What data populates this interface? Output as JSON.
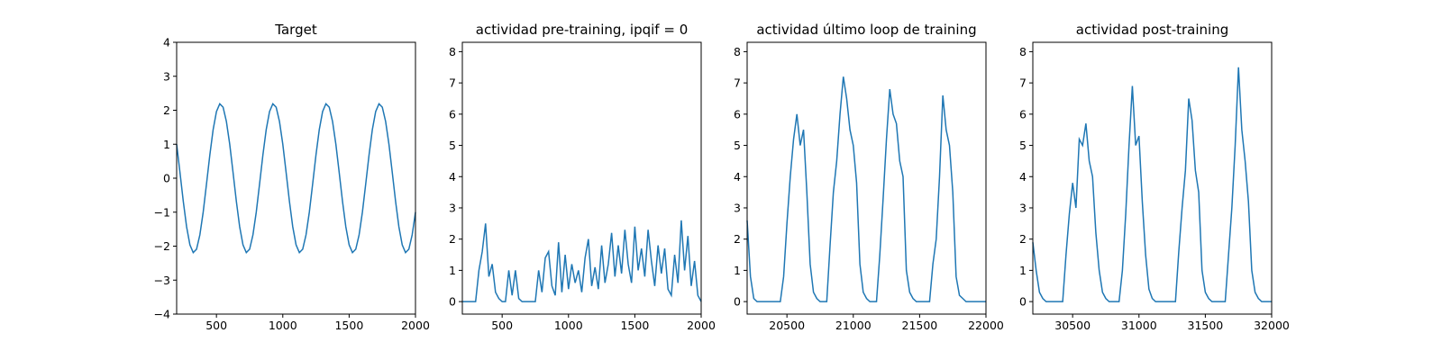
{
  "chart_data": [
    {
      "type": "line",
      "title": "Target",
      "color": "#1f77b4",
      "x": [
        200,
        225,
        250,
        275,
        300,
        325,
        350,
        375,
        400,
        425,
        450,
        475,
        500,
        525,
        550,
        575,
        600,
        625,
        650,
        675,
        700,
        725,
        750,
        775,
        800,
        825,
        850,
        875,
        900,
        925,
        950,
        975,
        1000,
        1025,
        1050,
        1075,
        1100,
        1125,
        1150,
        1175,
        1200,
        1225,
        1250,
        1275,
        1300,
        1325,
        1350,
        1375,
        1400,
        1425,
        1450,
        1475,
        1500,
        1525,
        1550,
        1575,
        1600,
        1625,
        1650,
        1675,
        1700,
        1725,
        1750,
        1775,
        1800,
        1825,
        1850,
        1875,
        1900,
        1925,
        1950,
        1975,
        2000
      ],
      "values": [
        1.0,
        0.17,
        -0.68,
        -1.43,
        -1.96,
        -2.19,
        -2.09,
        -1.67,
        -1.0,
        -0.17,
        0.68,
        1.43,
        1.96,
        2.19,
        2.09,
        1.67,
        1.0,
        0.17,
        -0.68,
        -1.43,
        -1.96,
        -2.19,
        -2.09,
        -1.67,
        -1.0,
        -0.17,
        0.68,
        1.43,
        1.96,
        2.19,
        2.09,
        1.67,
        1.0,
        0.17,
        -0.68,
        -1.43,
        -1.96,
        -2.19,
        -2.09,
        -1.67,
        -1.0,
        -0.17,
        0.68,
        1.43,
        1.96,
        2.19,
        2.09,
        1.67,
        1.0,
        0.17,
        -0.68,
        -1.43,
        -1.96,
        -2.19,
        -2.09,
        -1.67,
        -1.0,
        -0.17,
        0.68,
        1.43,
        1.96,
        2.19,
        2.09,
        1.67,
        1.0,
        0.17,
        -0.68,
        -1.43,
        -1.96,
        -2.19,
        -2.09,
        -1.67,
        -1.0
      ],
      "xlim": [
        200,
        2000
      ],
      "xticks": [
        500,
        1000,
        1500,
        2000
      ],
      "ylim": [
        -4,
        4
      ],
      "yticks": [
        {
          "value": -4,
          "label": "−4"
        },
        {
          "value": -3,
          "label": "−3"
        },
        {
          "value": -2,
          "label": "−2"
        },
        {
          "value": -1,
          "label": "−1"
        },
        0,
        1,
        2,
        3,
        4
      ]
    },
    {
      "type": "line",
      "title": "actividad pre-training, ipqif = 0",
      "color": "#1f77b4",
      "x": [
        200,
        225,
        250,
        275,
        300,
        325,
        350,
        375,
        400,
        425,
        450,
        475,
        500,
        525,
        550,
        575,
        600,
        625,
        650,
        675,
        700,
        725,
        750,
        775,
        800,
        825,
        850,
        875,
        900,
        925,
        950,
        975,
        1000,
        1025,
        1050,
        1075,
        1100,
        1125,
        1150,
        1175,
        1200,
        1225,
        1250,
        1275,
        1300,
        1325,
        1350,
        1375,
        1400,
        1425,
        1450,
        1475,
        1500,
        1525,
        1550,
        1575,
        1600,
        1625,
        1650,
        1675,
        1700,
        1725,
        1750,
        1775,
        1800,
        1825,
        1850,
        1875,
        1900,
        1925,
        1950,
        1975,
        2000
      ],
      "values": [
        0,
        0,
        0,
        0,
        0,
        1.0,
        1.6,
        2.5,
        0.8,
        1.2,
        0.3,
        0.1,
        0,
        0,
        1.0,
        0.2,
        1.0,
        0.1,
        0,
        0,
        0,
        0,
        0,
        1.0,
        0.3,
        1.4,
        1.6,
        0.5,
        0.2,
        1.9,
        0.3,
        1.5,
        0.4,
        1.2,
        0.6,
        1.0,
        0.3,
        1.4,
        2.0,
        0.5,
        1.1,
        0.4,
        1.8,
        0.6,
        1.2,
        2.2,
        0.8,
        1.8,
        0.9,
        2.3,
        1.2,
        0.6,
        2.4,
        1.0,
        1.7,
        0.8,
        2.3,
        1.3,
        0.5,
        1.8,
        0.9,
        1.7,
        0.4,
        0.2,
        1.5,
        0.6,
        2.6,
        1.0,
        2.1,
        0.5,
        1.3,
        0.2,
        0
      ],
      "xlim": [
        200,
        2000
      ],
      "xticks": [
        500,
        1000,
        1500,
        2000
      ],
      "ylim": [
        -0.4,
        8.3
      ],
      "yticks": [
        0,
        1,
        2,
        3,
        4,
        5,
        6,
        7,
        8
      ]
    },
    {
      "type": "line",
      "title": "actividad último loop de training",
      "color": "#1f77b4",
      "x": [
        20200,
        20225,
        20250,
        20275,
        20300,
        20325,
        20350,
        20375,
        20400,
        20425,
        20450,
        20475,
        20500,
        20525,
        20550,
        20575,
        20600,
        20625,
        20650,
        20675,
        20700,
        20725,
        20750,
        20775,
        20800,
        20825,
        20850,
        20875,
        20900,
        20925,
        20950,
        20975,
        21000,
        21025,
        21050,
        21075,
        21100,
        21125,
        21150,
        21175,
        21200,
        21225,
        21250,
        21275,
        21300,
        21325,
        21350,
        21375,
        21400,
        21425,
        21450,
        21475,
        21500,
        21525,
        21550,
        21575,
        21600,
        21625,
        21650,
        21675,
        21700,
        21725,
        21750,
        21775,
        21800,
        21825,
        21850,
        21875,
        21900,
        21925,
        21950,
        21975,
        22000
      ],
      "values": [
        2.6,
        0.8,
        0.1,
        0,
        0,
        0,
        0,
        0,
        0,
        0,
        0,
        0.8,
        2.5,
        4.0,
        5.2,
        6.0,
        5.0,
        5.5,
        3.5,
        1.2,
        0.3,
        0.1,
        0,
        0,
        0,
        1.8,
        3.5,
        4.5,
        6.0,
        7.2,
        6.5,
        5.5,
        5.0,
        3.8,
        1.2,
        0.3,
        0.1,
        0,
        0,
        0,
        1.5,
        3.3,
        5.2,
        6.8,
        6.0,
        5.7,
        4.5,
        4.0,
        1.0,
        0.3,
        0.1,
        0,
        0,
        0,
        0,
        0,
        1.2,
        2.0,
        4.0,
        6.6,
        5.5,
        5.0,
        3.5,
        0.8,
        0.2,
        0.1,
        0,
        0,
        0,
        0,
        0,
        0,
        0
      ],
      "xlim": [
        20200,
        22000
      ],
      "xticks": [
        20500,
        21000,
        21500,
        22000
      ],
      "ylim": [
        -0.4,
        8.3
      ],
      "yticks": [
        0,
        1,
        2,
        3,
        4,
        5,
        6,
        7,
        8
      ]
    },
    {
      "type": "line",
      "title": "actividad post-training",
      "color": "#1f77b4",
      "x": [
        30200,
        30225,
        30250,
        30275,
        30300,
        30325,
        30350,
        30375,
        30400,
        30425,
        30450,
        30475,
        30500,
        30525,
        30550,
        30575,
        30600,
        30625,
        30650,
        30675,
        30700,
        30725,
        30750,
        30775,
        30800,
        30825,
        30850,
        30875,
        30900,
        30925,
        30950,
        30975,
        31000,
        31025,
        31050,
        31075,
        31100,
        31125,
        31150,
        31175,
        31200,
        31225,
        31250,
        31275,
        31300,
        31325,
        31350,
        31375,
        31400,
        31425,
        31450,
        31475,
        31500,
        31525,
        31550,
        31575,
        31600,
        31625,
        31650,
        31675,
        31700,
        31725,
        31750,
        31775,
        31800,
        31825,
        31850,
        31875,
        31900,
        31925,
        31950,
        31975,
        32000
      ],
      "values": [
        1.9,
        1.0,
        0.3,
        0.1,
        0,
        0,
        0,
        0,
        0,
        0,
        1.5,
        2.8,
        3.8,
        3.0,
        5.2,
        5.0,
        5.7,
        4.5,
        4.0,
        2.2,
        1.0,
        0.3,
        0.1,
        0,
        0,
        0,
        0,
        1.0,
        2.8,
        5.0,
        6.9,
        5.0,
        5.3,
        3.2,
        1.5,
        0.4,
        0.1,
        0,
        0,
        0,
        0,
        0,
        0,
        0,
        1.6,
        3.0,
        4.2,
        6.5,
        5.8,
        4.2,
        3.5,
        1.0,
        0.3,
        0.1,
        0,
        0,
        0,
        0,
        0,
        1.5,
        3.0,
        5.0,
        7.5,
        5.5,
        4.5,
        3.2,
        1.0,
        0.3,
        0.1,
        0,
        0,
        0,
        0
      ],
      "xlim": [
        30200,
        32000
      ],
      "xticks": [
        30500,
        31000,
        31500,
        32000
      ],
      "ylim": [
        -0.4,
        8.3
      ],
      "yticks": [
        0,
        1,
        2,
        3,
        4,
        5,
        6,
        7,
        8
      ]
    }
  ]
}
